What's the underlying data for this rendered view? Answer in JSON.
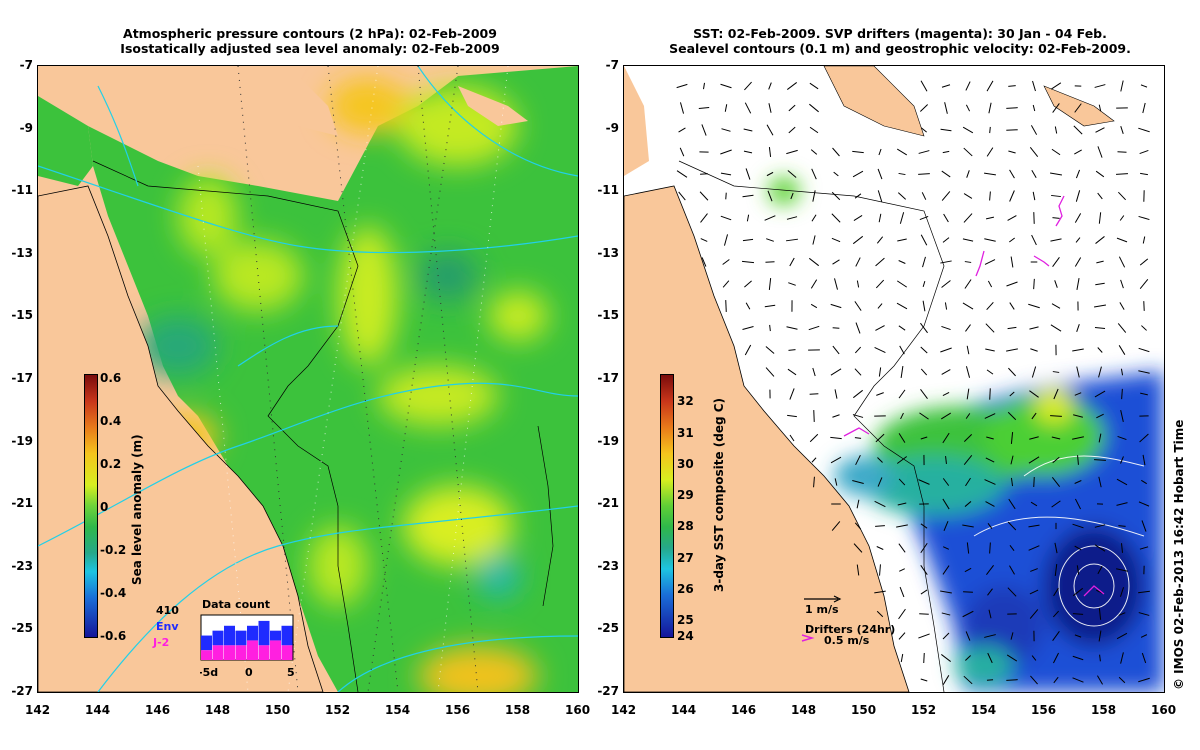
{
  "left_panel": {
    "title_line1": "Atmospheric pressure contours (2 hPa): 02-Feb-2009",
    "title_line2": "Isostatically adjusted sea level anomaly: 02-Feb-2009",
    "colorbar": {
      "label": "Sea level anomaly (m)",
      "ticks": [
        "0.6",
        "0.4",
        "0.2",
        "0",
        "-0.2",
        "-0.4",
        "-0.6"
      ]
    },
    "data_count": {
      "title": "Data count",
      "total": "410",
      "env_label": "Env",
      "j2_label": "J-2",
      "env_color": "#1f2bff",
      "j2_color": "#ff20e0",
      "xticks": [
        "-5d",
        "0",
        "5"
      ],
      "env_values": [
        5,
        6,
        7,
        6,
        7,
        8,
        6,
        7
      ],
      "j2_values": [
        2,
        3,
        3,
        3,
        4,
        3,
        4,
        3
      ]
    }
  },
  "right_panel": {
    "title_line1": "SST: 02-Feb-2009. SVP drifters (magenta): 30 Jan - 04 Feb.",
    "title_line2": "Sealevel contours (0.1 m) and geostrophic velocity: 02-Feb-2009.",
    "colorbar": {
      "label": "3-day SST composite (deg C)",
      "ticks": [
        "32",
        "31",
        "30",
        "29",
        "28",
        "27",
        "26",
        "25",
        "24"
      ]
    },
    "velocity_scale_label": "1 m/s",
    "drifters_label": "Drifters (24hr)",
    "drifter_speed_label": "0.5 m/s"
  },
  "axes": {
    "x_ticks": [
      "142",
      "144",
      "146",
      "148",
      "150",
      "152",
      "154",
      "156",
      "158",
      "160"
    ],
    "y_ticks": [
      "-7",
      "-9",
      "-11",
      "-13",
      "-15",
      "-17",
      "-19",
      "-21",
      "-23",
      "-25",
      "-27"
    ]
  },
  "credit": "© IMOS 02-Feb-2013 16:42 Hobart Time",
  "colors": {
    "land": "#f9c79a",
    "ocean_green": "#35c23a",
    "contour_cyan": "#22d0e8",
    "drifter_magenta": "#e020e0"
  }
}
